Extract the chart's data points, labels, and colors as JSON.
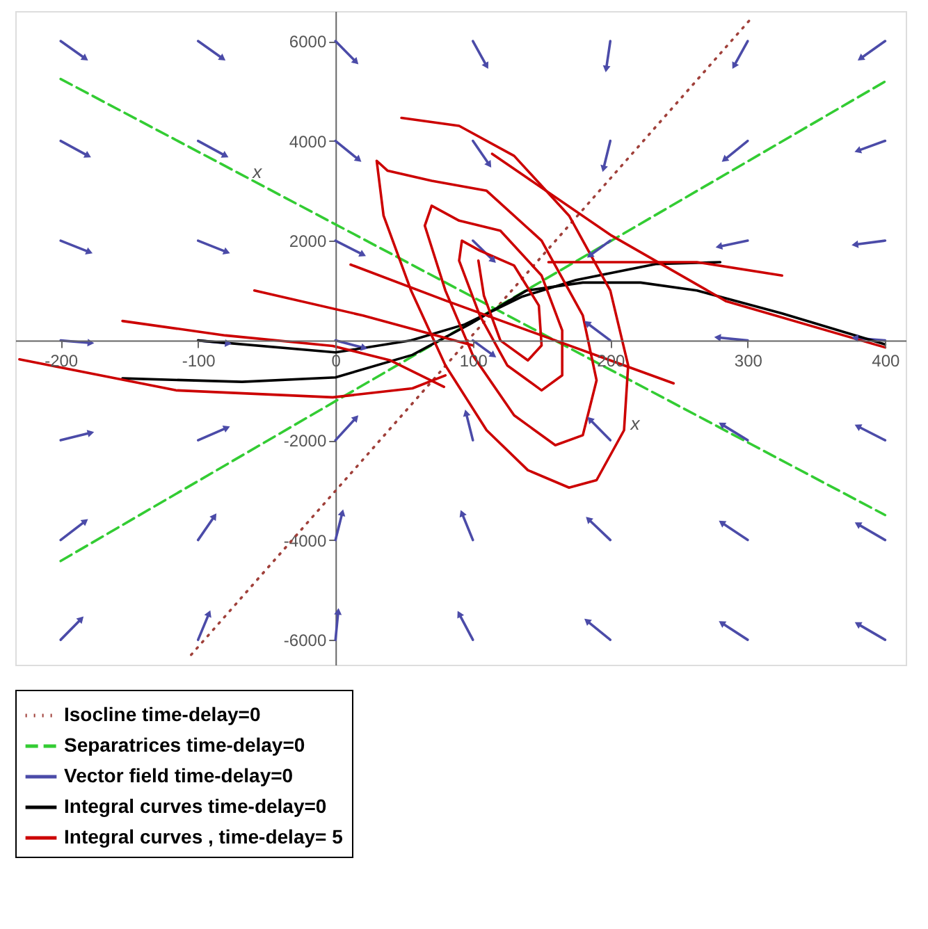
{
  "chart_data": {
    "type": "line",
    "xlim": [
      -233,
      415
    ],
    "ylim": [
      -6500,
      6600
    ],
    "xticks": [
      -200,
      -100,
      0,
      100,
      200,
      300,
      400
    ],
    "yticks": [
      -6000,
      -4000,
      -2000,
      2000,
      4000,
      6000
    ],
    "grid": false,
    "legend": "bottom",
    "marker": "none",
    "line_style": "solid",
    "annotations": [
      {
        "text": "x",
        "x": -63,
        "y": 3200
      },
      {
        "text": "x",
        "x": 212,
        "y": -1850
      }
    ],
    "series": [
      {
        "name": "Isocline time-delay=0",
        "color": "#a0403a",
        "line_style": "dotted",
        "x": [
          -105,
          304
        ],
        "values": [
          -6300,
          6500
        ]
      },
      {
        "name": "Separatrices  time-delay=0",
        "color": "#33cc33",
        "line_style": "dashed",
        "x": [
          -200,
          400
        ],
        "values": [
          5240,
          -3500
        ]
      },
      {
        "color": "#33cc33",
        "line_style": "dashed",
        "x": [
          -200,
          400
        ],
        "values": [
          -4420,
          5190
        ]
      },
      {
        "name": "Vector field  time-delay=0",
        "color": "#4b4ba8",
        "marker": "triangle",
        "x": [
          -200,
          -182
        ],
        "values": [
          6000,
          5650
        ]
      },
      {
        "color": "#4b4ba8",
        "marker": "triangle",
        "x": [
          -100,
          -82
        ],
        "values": [
          6000,
          5650
        ]
      },
      {
        "color": "#4b4ba8",
        "marker": "triangle",
        "x": [
          0,
          15
        ],
        "values": [
          6000,
          5580
        ]
      },
      {
        "color": "#4b4ba8",
        "marker": "triangle",
        "x": [
          100,
          110
        ],
        "values": [
          6000,
          5500
        ]
      },
      {
        "color": "#4b4ba8",
        "marker": "triangle",
        "x": [
          200,
          197
        ],
        "values": [
          6000,
          5440
        ]
      },
      {
        "color": "#4b4ba8",
        "marker": "triangle",
        "x": [
          300,
          290
        ],
        "values": [
          6000,
          5500
        ]
      },
      {
        "color": "#4b4ba8",
        "marker": "triangle",
        "x": [
          400,
          382
        ],
        "values": [
          6000,
          5650
        ]
      },
      {
        "color": "#4b4ba8",
        "marker": "triangle",
        "x": [
          -200,
          -180
        ],
        "values": [
          4000,
          3700
        ]
      },
      {
        "color": "#4b4ba8",
        "marker": "triangle",
        "x": [
          -100,
          -80
        ],
        "values": [
          4000,
          3700
        ]
      },
      {
        "color": "#4b4ba8",
        "marker": "triangle",
        "x": [
          0,
          17
        ],
        "values": [
          4000,
          3620
        ]
      },
      {
        "color": "#4b4ba8",
        "marker": "triangle",
        "x": [
          100,
          112
        ],
        "values": [
          4000,
          3520
        ]
      },
      {
        "color": "#4b4ba8",
        "marker": "triangle",
        "x": [
          200,
          195
        ],
        "values": [
          4000,
          3440
        ]
      },
      {
        "color": "#4b4ba8",
        "marker": "triangle",
        "x": [
          300,
          283
        ],
        "values": [
          4000,
          3620
        ]
      },
      {
        "color": "#4b4ba8",
        "marker": "triangle",
        "x": [
          400,
          380
        ],
        "values": [
          4000,
          3800
        ]
      },
      {
        "color": "#4b4ba8",
        "marker": "triangle",
        "x": [
          -200,
          -179
        ],
        "values": [
          2000,
          1770
        ]
      },
      {
        "color": "#4b4ba8",
        "marker": "triangle",
        "x": [
          -100,
          -79
        ],
        "values": [
          2000,
          1770
        ]
      },
      {
        "color": "#4b4ba8",
        "marker": "triangle",
        "x": [
          0,
          20
        ],
        "values": [
          2000,
          1720
        ]
      },
      {
        "color": "#4b4ba8",
        "marker": "triangle",
        "x": [
          100,
          115
        ],
        "values": [
          2000,
          1600
        ]
      },
      {
        "color": "#4b4ba8",
        "marker": "triangle",
        "x": [
          200,
          185
        ],
        "values": [
          2000,
          1700
        ]
      },
      {
        "color": "#4b4ba8",
        "marker": "triangle",
        "x": [
          300,
          279
        ],
        "values": [
          2000,
          1880
        ]
      },
      {
        "color": "#4b4ba8",
        "marker": "triangle",
        "x": [
          400,
          378
        ],
        "values": [
          2000,
          1920
        ]
      },
      {
        "color": "#4b4ba8",
        "marker": "triangle",
        "x": [
          -200,
          -178
        ],
        "values": [
          0,
          -50
        ]
      },
      {
        "color": "#4b4ba8",
        "marker": "triangle",
        "x": [
          -100,
          -78
        ],
        "values": [
          0,
          -60
        ]
      },
      {
        "color": "#4b4ba8",
        "marker": "triangle",
        "x": [
          0,
          21
        ],
        "values": [
          0,
          -150
        ]
      },
      {
        "color": "#4b4ba8",
        "marker": "triangle",
        "x": [
          100,
          115
        ],
        "values": [
          0,
          -300
        ]
      },
      {
        "color": "#4b4ba8",
        "marker": "triangle",
        "x": [
          200,
          183
        ],
        "values": [
          0,
          350
        ]
      },
      {
        "color": "#4b4ba8",
        "marker": "triangle",
        "x": [
          300,
          278
        ],
        "values": [
          0,
          60
        ]
      },
      {
        "color": "#4b4ba8",
        "marker": "triangle",
        "x": [
          400,
          378
        ],
        "values": [
          0,
          50
        ]
      },
      {
        "color": "#4b4ba8",
        "marker": "triangle",
        "x": [
          -200,
          -178
        ],
        "values": [
          -2000,
          -1850
        ]
      },
      {
        "color": "#4b4ba8",
        "marker": "triangle",
        "x": [
          -100,
          -79
        ],
        "values": [
          -2000,
          -1750
        ]
      },
      {
        "color": "#4b4ba8",
        "marker": "triangle",
        "x": [
          0,
          15
        ],
        "values": [
          -2000,
          -1550
        ]
      },
      {
        "color": "#4b4ba8",
        "marker": "triangle",
        "x": [
          100,
          95
        ],
        "values": [
          -2000,
          -1450
        ]
      },
      {
        "color": "#4b4ba8",
        "marker": "triangle",
        "x": [
          200,
          185
        ],
        "values": [
          -2000,
          -1580
        ]
      },
      {
        "color": "#4b4ba8",
        "marker": "triangle",
        "x": [
          300,
          281
        ],
        "values": [
          -2000,
          -1680
        ]
      },
      {
        "color": "#4b4ba8",
        "marker": "triangle",
        "x": [
          400,
          380
        ],
        "values": [
          -2000,
          -1720
        ]
      },
      {
        "color": "#4b4ba8",
        "marker": "triangle",
        "x": [
          -200,
          -182
        ],
        "values": [
          -4000,
          -3620
        ]
      },
      {
        "color": "#4b4ba8",
        "marker": "triangle",
        "x": [
          -100,
          -88
        ],
        "values": [
          -4000,
          -3520
        ]
      },
      {
        "color": "#4b4ba8",
        "marker": "triangle",
        "x": [
          0,
          5
        ],
        "values": [
          -4000,
          -3450
        ]
      },
      {
        "color": "#4b4ba8",
        "marker": "triangle",
        "x": [
          100,
          92
        ],
        "values": [
          -4000,
          -3460
        ]
      },
      {
        "color": "#4b4ba8",
        "marker": "triangle",
        "x": [
          200,
          184
        ],
        "values": [
          -4000,
          -3580
        ]
      },
      {
        "color": "#4b4ba8",
        "marker": "triangle",
        "x": [
          300,
          281
        ],
        "values": [
          -4000,
          -3650
        ]
      },
      {
        "color": "#4b4ba8",
        "marker": "triangle",
        "x": [
          400,
          380
        ],
        "values": [
          -4000,
          -3680
        ]
      },
      {
        "color": "#4b4ba8",
        "marker": "triangle",
        "x": [
          -200,
          -185
        ],
        "values": [
          -6000,
          -5580
        ]
      },
      {
        "color": "#4b4ba8",
        "marker": "triangle",
        "x": [
          -100,
          -92
        ],
        "values": [
          -6000,
          -5470
        ]
      },
      {
        "color": "#4b4ba8",
        "marker": "triangle",
        "x": [
          0,
          2
        ],
        "values": [
          -6000,
          -5430
        ]
      },
      {
        "color": "#4b4ba8",
        "marker": "triangle",
        "x": [
          100,
          90
        ],
        "values": [
          -6000,
          -5480
        ]
      },
      {
        "color": "#4b4ba8",
        "marker": "triangle",
        "x": [
          200,
          183
        ],
        "values": [
          -6000,
          -5620
        ]
      },
      {
        "color": "#4b4ba8",
        "marker": "triangle",
        "x": [
          300,
          281
        ],
        "values": [
          -6000,
          -5660
        ]
      },
      {
        "color": "#4b4ba8",
        "marker": "triangle",
        "x": [
          400,
          380
        ],
        "values": [
          -6000,
          -5680
        ]
      },
      {
        "name": "Integral curves  time-delay=0",
        "color": "#000000",
        "x": [
          -100,
          0,
          55,
          94,
          136,
          175,
          233,
          280
        ],
        "values": [
          0,
          -240,
          0,
          320,
          880,
          1210,
          1530,
          1570
        ]
      },
      {
        "color": "#000000",
        "x": [
          -155,
          -68,
          0,
          56,
          98,
          139,
          180,
          222,
          263,
          325,
          400
        ],
        "values": [
          -760,
          -830,
          -740,
          -290,
          330,
          1000,
          1160,
          1160,
          1000,
          540,
          -80
        ]
      },
      {
        "name": "Integral curves , time-delay= 5",
        "color": "#cc0000",
        "x": [
          11,
          80,
          150,
          200,
          246
        ],
        "values": [
          1520,
          800,
          100,
          -400,
          -860
        ]
      },
      {
        "color": "#cc0000",
        "x": [
          -59,
          20,
          60,
          100
        ],
        "values": [
          1000,
          500,
          200,
          -100
        ]
      },
      {
        "color": "#cc0000",
        "x": [
          -155,
          -80,
          -2,
          40,
          79
        ],
        "values": [
          390,
          100,
          -110,
          -400,
          -930
        ]
      },
      {
        "color": "#cc0000",
        "x": [
          -230,
          -116,
          -2,
          56,
          80
        ],
        "values": [
          -380,
          -1000,
          -1140,
          -960,
          -700
        ]
      },
      {
        "color": "#cc0000",
        "x": [
          114,
          201,
          284,
          400
        ],
        "values": [
          3740,
          2100,
          790,
          -140
        ]
      },
      {
        "color": "#cc0000",
        "x": [
          155,
          263,
          325
        ],
        "values": [
          1570,
          1570,
          1300
        ]
      },
      {
        "color": "#cc0000",
        "x": [
          48,
          90,
          130,
          170,
          200,
          213,
          210,
          190,
          170,
          140,
          110,
          80,
          55,
          35,
          30,
          38,
          70,
          110,
          150,
          180,
          190,
          180,
          160,
          130,
          100,
          80,
          65,
          70,
          90,
          120,
          150,
          165,
          165,
          150,
          125,
          105,
          90,
          92,
          105,
          130,
          148,
          150,
          140,
          120,
          108,
          104
        ],
        "values": [
          4460,
          4300,
          3700,
          2500,
          1000,
          -500,
          -1800,
          -2800,
          -2950,
          -2600,
          -1800,
          -500,
          1000,
          2500,
          3600,
          3400,
          3200,
          3000,
          2000,
          500,
          -800,
          -1900,
          -2100,
          -1500,
          -300,
          1000,
          2300,
          2700,
          2400,
          2200,
          1300,
          200,
          -700,
          -1000,
          -500,
          500,
          1600,
          2000,
          1800,
          1500,
          700,
          -100,
          -400,
          0,
          900,
          1600
        ]
      }
    ]
  }
}
